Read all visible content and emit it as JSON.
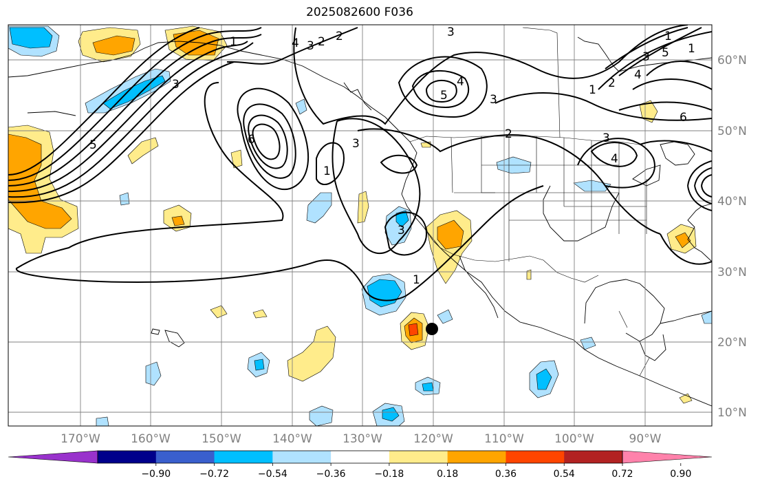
{
  "title": "2025082600 F036",
  "map": {
    "lon_labels": [
      "170°W",
      "160°W",
      "150°W",
      "140°W",
      "130°W",
      "120°W",
      "110°W",
      "100°W",
      "90°W"
    ],
    "lat_labels": [
      "60°N",
      "50°N",
      "40°N",
      "30°N",
      "20°N",
      "10°N"
    ],
    "contour_labels": [
      "1",
      "2",
      "3",
      "3",
      "4",
      "5",
      "6",
      "2",
      "1",
      "3",
      "3",
      "3",
      "1",
      "4",
      "5",
      "3",
      "2",
      "3",
      "4",
      "3",
      "4",
      "5",
      "6",
      "1",
      "2",
      "1",
      "1"
    ],
    "marker": {
      "lon": -120,
      "lat": 22
    }
  },
  "colorbar": {
    "colors": [
      "#9932cc",
      "#00008b",
      "#3a5fcd",
      "#00bfff",
      "#b0e2ff",
      "#ffffff",
      "#ffec8b",
      "#ffa500",
      "#ff4500",
      "#b22222",
      "#ff82ab"
    ],
    "tick_labels": [
      "−0.90",
      "−0.72",
      "−0.54",
      "−0.36",
      "−0.18",
      "0.18",
      "0.36",
      "0.54",
      "0.72",
      "0.90"
    ]
  }
}
